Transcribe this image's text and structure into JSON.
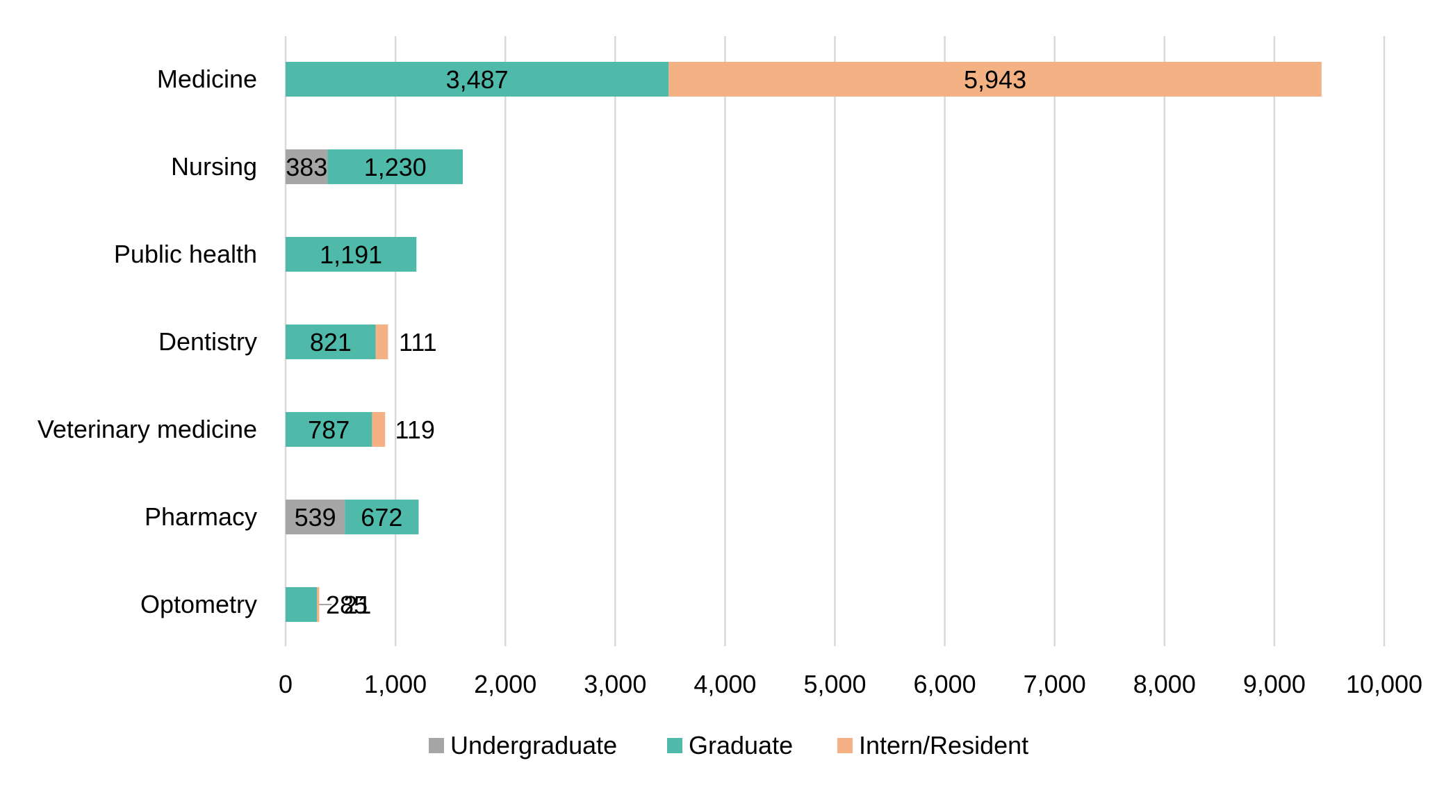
{
  "chart_data": {
    "type": "bar",
    "orientation": "horizontal",
    "stacked": true,
    "categories": [
      "Medicine",
      "Nursing",
      "Public health",
      "Dentistry",
      "Veterinary medicine",
      "Pharmacy",
      "Optometry"
    ],
    "series": [
      {
        "name": "Undergraduate",
        "color": "#A6A6A6",
        "values": [
          0,
          383,
          0,
          0,
          0,
          539,
          0
        ]
      },
      {
        "name": "Graduate",
        "color": "#4FBAA9",
        "values": [
          3487,
          1230,
          1191,
          821,
          787,
          672,
          285
        ]
      },
      {
        "name": "Intern/Resident",
        "color": "#F4B183",
        "values": [
          5943,
          0,
          0,
          111,
          119,
          0,
          21
        ]
      }
    ],
    "data_labels": [
      [
        "",
        "383",
        "",
        "",
        "",
        "539",
        ""
      ],
      [
        "3,487",
        "1,230",
        "1,191",
        "821",
        "787",
        "672",
        "285"
      ],
      [
        "5,943",
        "",
        "",
        "111",
        "119",
        "",
        "21"
      ]
    ],
    "xlim": [
      0,
      10000
    ],
    "xticks": [
      0,
      1000,
      2000,
      3000,
      4000,
      5000,
      6000,
      7000,
      8000,
      9000,
      10000
    ],
    "xtick_labels": [
      "0",
      "1,000",
      "2,000",
      "3,000",
      "4,000",
      "5,000",
      "6,000",
      "7,000",
      "8,000",
      "9,000",
      "10,000"
    ],
    "grid": true,
    "legend_position": "bottom",
    "title": "",
    "xlabel": "",
    "ylabel": ""
  }
}
